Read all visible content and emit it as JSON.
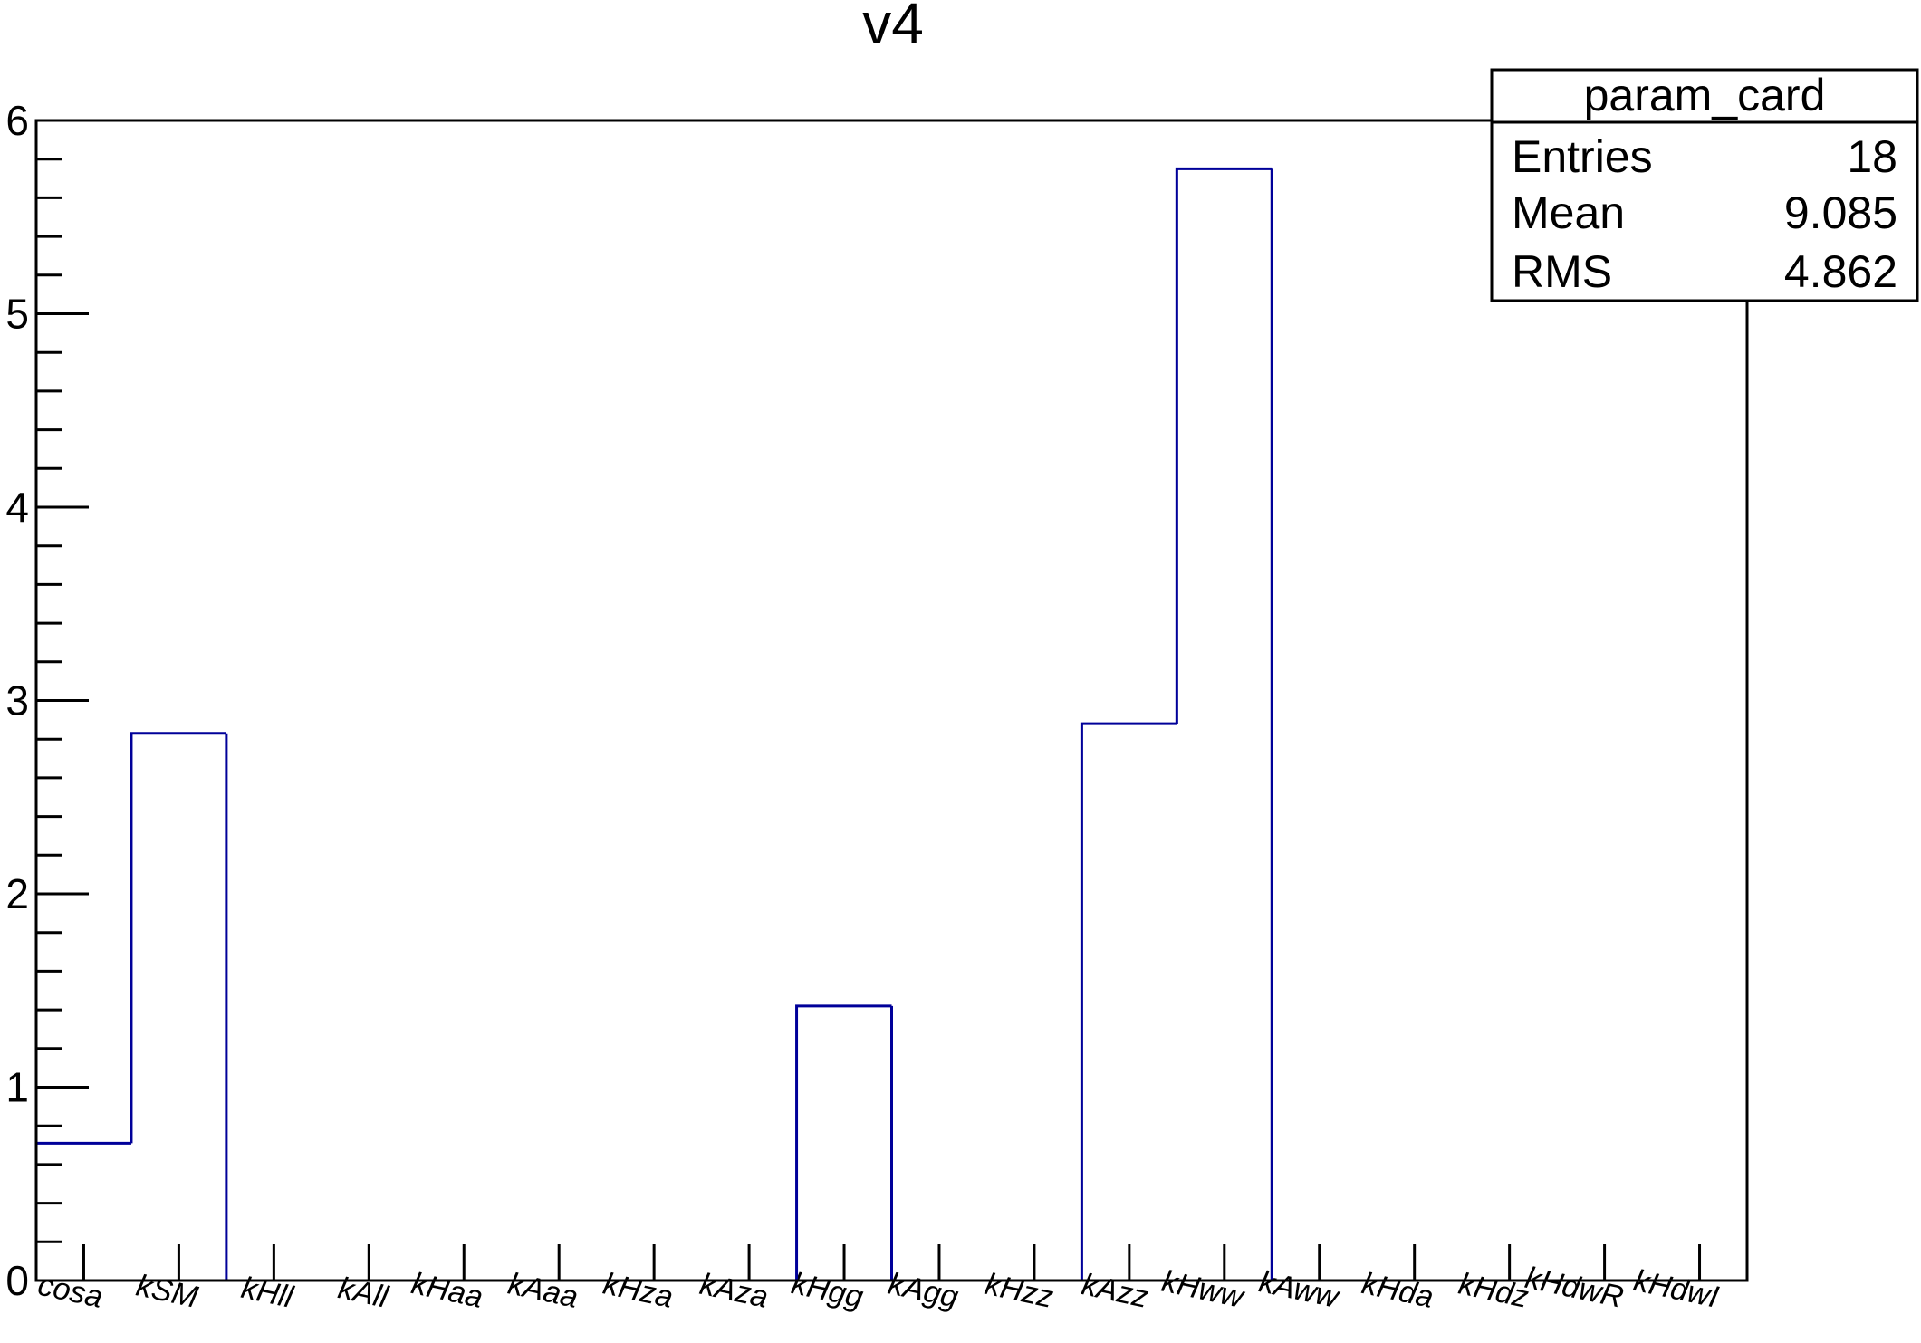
{
  "chart_data": {
    "type": "bar",
    "style": "step-histogram",
    "title": "v4",
    "xlabel": "",
    "ylabel": "",
    "ylim": [
      0,
      6
    ],
    "yticks": [
      0,
      1,
      2,
      3,
      4,
      5,
      6
    ],
    "grid": false,
    "line_color": "#000099",
    "categories": [
      "cosa",
      "kSM",
      "kHll",
      "kAll",
      "kHaa",
      "kAaa",
      "kHza",
      "kAza",
      "kHgg",
      "kAgg",
      "kHzz",
      "kAzz",
      "kHww",
      "kAww",
      "kHda",
      "kHdz",
      "kHdwR",
      "kHdwI"
    ],
    "values": [
      0.71,
      2.83,
      0,
      0,
      0,
      0,
      0,
      0,
      1.42,
      0,
      0,
      2.88,
      5.75,
      0,
      0,
      0,
      0,
      0
    ],
    "bin_width": 1,
    "x0": 0,
    "stats_box": {
      "name": "param_card",
      "placement": "top-right",
      "rows": [
        {
          "label": "Entries",
          "value": "18"
        },
        {
          "label": "Mean",
          "value": "9.085"
        },
        {
          "label": "RMS",
          "value": "4.862"
        }
      ]
    }
  }
}
